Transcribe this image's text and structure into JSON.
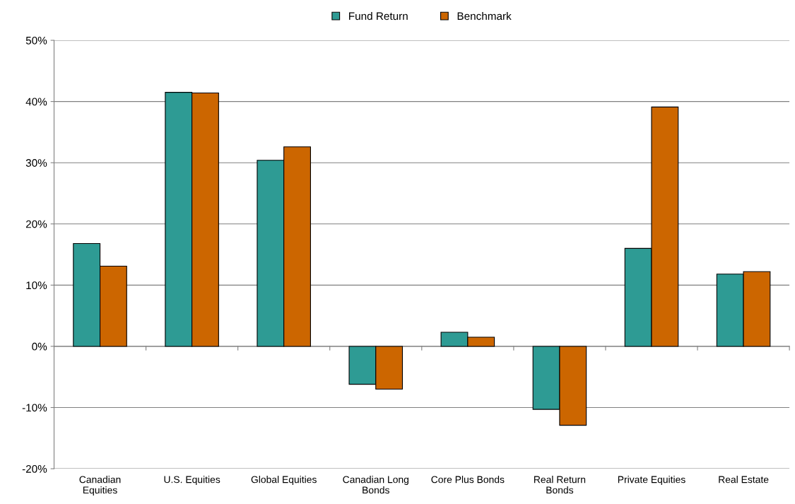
{
  "chart_data": {
    "type": "bar",
    "categories": [
      "Canadian Equities",
      "U.S. Equities",
      "Global Equities",
      "Canadian Long Bonds",
      "Core Plus Bonds",
      "Real Return Bonds",
      "Private Equities",
      "Real Estate"
    ],
    "series": [
      {
        "name": "Fund Return",
        "color": "#2e9b94",
        "values": [
          16.8,
          41.5,
          30.4,
          -6.2,
          2.3,
          -10.3,
          16.0,
          11.8
        ]
      },
      {
        "name": "Benchmark",
        "color": "#cc6600",
        "values": [
          13.1,
          41.4,
          32.6,
          -7.0,
          1.5,
          -12.9,
          39.1,
          12.2
        ]
      }
    ],
    "ylim": [
      -20,
      50
    ],
    "yticks": [
      {
        "value": -20,
        "label": "-20%"
      },
      {
        "value": -10,
        "label": "-10%"
      },
      {
        "value": 0,
        "label": "0%"
      },
      {
        "value": 10,
        "label": "10%"
      },
      {
        "value": 20,
        "label": "20%"
      },
      {
        "value": 30,
        "label": "30%"
      },
      {
        "value": 40,
        "label": "40%"
      },
      {
        "value": 50,
        "label": "50%"
      }
    ],
    "grid": "y",
    "legend": "top"
  }
}
